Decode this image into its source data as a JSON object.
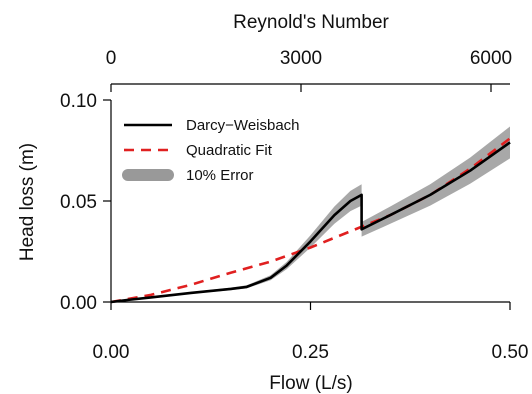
{
  "chart_data": {
    "type": "line",
    "xlabel": "Flow (L/s)",
    "ylabel": "Head loss (m)",
    "top_xlabel": "Reynold's Number",
    "xlim": [
      0,
      0.5
    ],
    "ylim": [
      0,
      0.1
    ],
    "top_xlim": [
      0,
      6300
    ],
    "x_ticks": [
      "0.00",
      "0.25",
      "0.50"
    ],
    "x_tick_values": [
      0,
      0.25,
      0.5
    ],
    "y_ticks": [
      "0.00",
      "0.05",
      "0.10"
    ],
    "y_tick_values": [
      0,
      0.05,
      0.1
    ],
    "top_ticks": [
      "0",
      "3000",
      "6000"
    ],
    "top_tick_values": [
      0,
      3000,
      6000
    ],
    "grid": false,
    "legend_position": "top-left",
    "series": [
      {
        "name": "Darcy−Weisbach",
        "color": "#000000",
        "style": "solid",
        "x": [
          0.0,
          0.02,
          0.05,
          0.1,
          0.15,
          0.17,
          0.2,
          0.22,
          0.25,
          0.28,
          0.3,
          0.314,
          0.314,
          0.35,
          0.4,
          0.45,
          0.5
        ],
        "y": [
          0.0,
          0.001,
          0.0023,
          0.0045,
          0.0065,
          0.0075,
          0.012,
          0.018,
          0.03,
          0.043,
          0.05,
          0.053,
          0.036,
          0.043,
          0.053,
          0.065,
          0.079
        ]
      },
      {
        "name": "Quadratic Fit",
        "color": "#e02020",
        "style": "dashed",
        "x": [
          0.0,
          0.05,
          0.1,
          0.15,
          0.2,
          0.25,
          0.3,
          0.35,
          0.4,
          0.45,
          0.5
        ],
        "y": [
          0.0,
          0.0035,
          0.0085,
          0.0145,
          0.02,
          0.027,
          0.035,
          0.043,
          0.053,
          0.066,
          0.081
        ]
      }
    ],
    "error_band": {
      "name": "10% Error",
      "color": "#999999",
      "relative_error": 0.1
    }
  }
}
